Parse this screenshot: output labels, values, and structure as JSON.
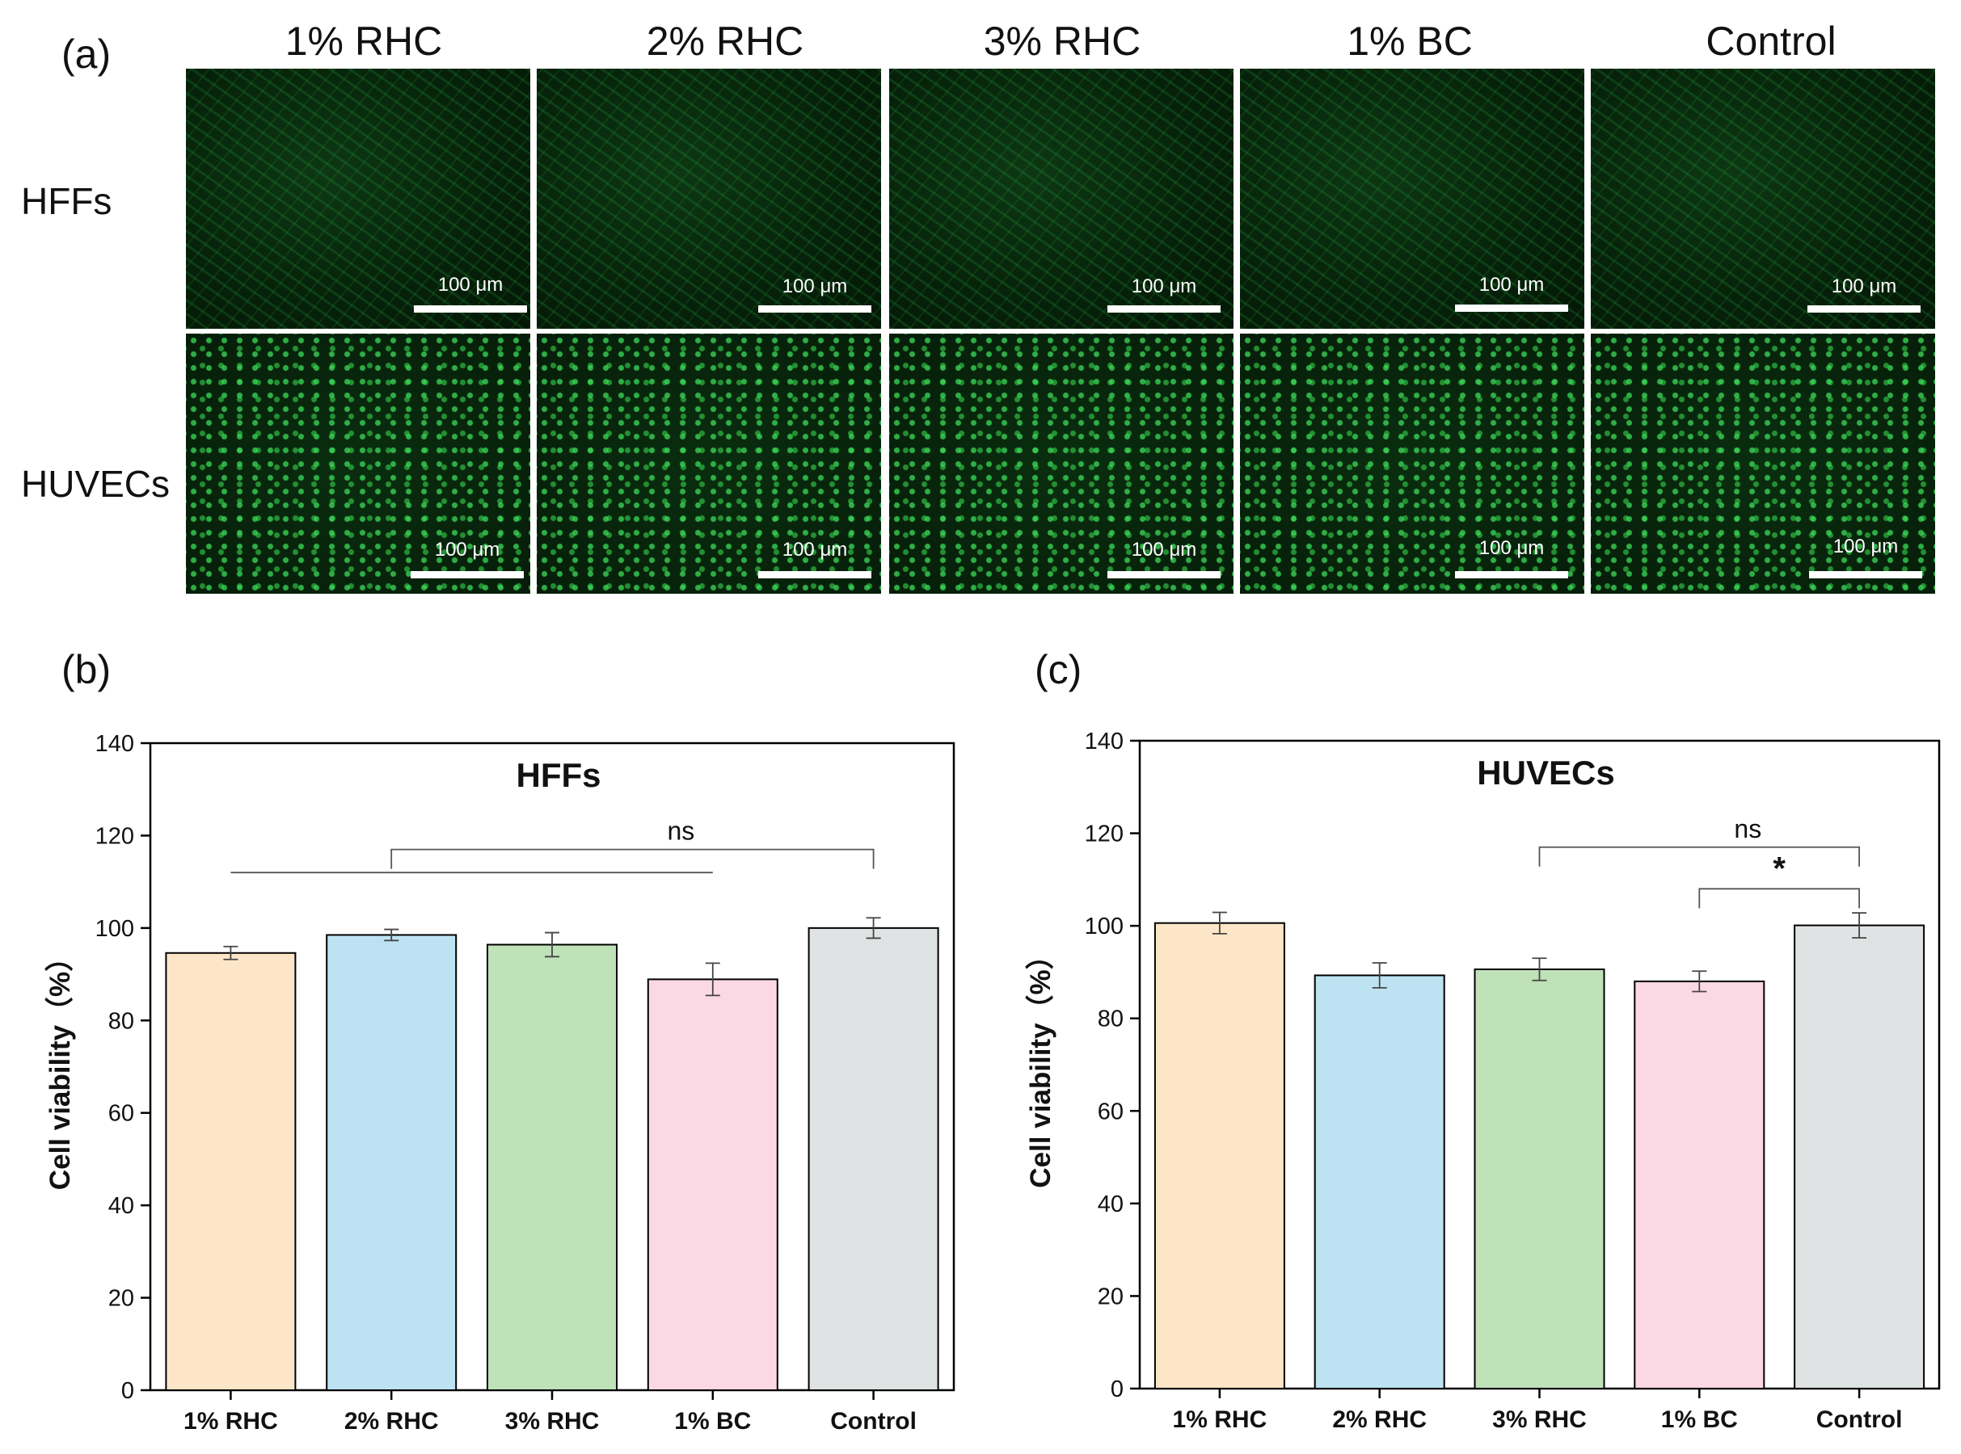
{
  "panel_a": {
    "letter": "(a)",
    "columns": [
      "1% RHC",
      "2% RHC",
      "3% RHC",
      "1% BC",
      "Control"
    ],
    "rows": [
      "HFFs",
      "HUVECs"
    ],
    "scale_bar_labels": [
      [
        "100  μm",
        "100 μm",
        "100 μm",
        "100 μm",
        "100 μm"
      ],
      [
        "100 μm",
        "100 μm",
        "100 μm",
        "100 μm",
        "100 μm"
      ]
    ]
  },
  "panel_b": {
    "letter": "(b)"
  },
  "panel_c": {
    "letter": "(c)"
  },
  "chart_data": [
    {
      "type": "bar",
      "title": "HFFs",
      "xlabel": "",
      "ylabel": "Cell viability（%）",
      "categories": [
        "1% RHC",
        "2% RHC",
        "3% RHC",
        "1% BC",
        "Control"
      ],
      "values": [
        94.6,
        98.5,
        96.4,
        88.9,
        100.0
      ],
      "errors": [
        1.4,
        1.2,
        2.6,
        3.5,
        2.2
      ],
      "colors": [
        "#fde6c7",
        "#bde3f3",
        "#bfe2b8",
        "#fcd8e4",
        "#e0e3e3"
      ],
      "ylim": [
        0,
        140
      ],
      "yticks": [
        0,
        20,
        40,
        60,
        80,
        100,
        120,
        140
      ],
      "annotations": [
        {
          "text": "ns",
          "type": "bracket",
          "from": "2% RHC",
          "to": "Control",
          "y": 117
        },
        {
          "text": "",
          "type": "line",
          "from": "1% RHC",
          "to": "1% BC",
          "y": 112
        }
      ]
    },
    {
      "type": "bar",
      "title": "HUVECs",
      "xlabel": "",
      "ylabel": "Cell viability（%）",
      "categories": [
        "1% RHC",
        "2% RHC",
        "3% RHC",
        "1% BC",
        "Control"
      ],
      "values": [
        100.6,
        89.3,
        90.6,
        88.0,
        100.1
      ],
      "errors": [
        2.3,
        2.7,
        2.4,
        2.2,
        2.7
      ],
      "colors": [
        "#fde6c7",
        "#bde3f3",
        "#bfe2b8",
        "#fcd8e4",
        "#e0e3e3"
      ],
      "ylim": [
        0,
        140
      ],
      "yticks": [
        0,
        20,
        40,
        60,
        80,
        100,
        120,
        140
      ],
      "annotations": [
        {
          "text": "ns",
          "type": "bracket",
          "from": "3% RHC",
          "to": "Control",
          "y": 117
        },
        {
          "text": "*",
          "type": "bracket",
          "from": "1% BC",
          "to": "Control",
          "y": 108
        }
      ]
    }
  ]
}
